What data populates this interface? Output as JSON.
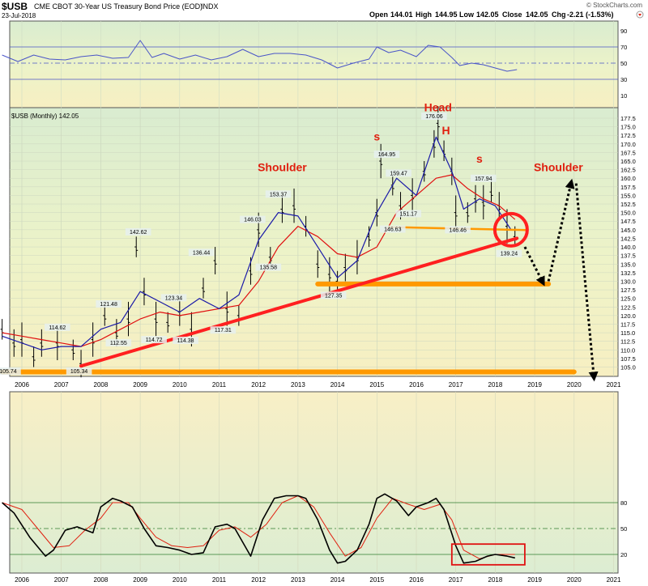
{
  "header": {
    "symbol": "$USB",
    "description": "CME CBOT 30-Year US Treasury Bond Price (EOD)",
    "exchange": "INDX",
    "date": "23-Jul-2018",
    "credit": "© StockCharts.com",
    "open_label": "Open",
    "open": "144.01",
    "high_label": "High",
    "high": "144.95",
    "low_label": "Low",
    "low": "142.05",
    "close_label": "Close",
    "close": "142.05",
    "chg_label": "Chg",
    "chg": "-2.21 (-1.53%)"
  },
  "colors": {
    "price_line": "#000000",
    "ma_fast": "#1a1aa8",
    "ma_slow": "#e01010",
    "trendline": "#ff2020",
    "support": "#ff9900",
    "annotation": "#e02010",
    "rsi_line": "#4a55c8",
    "stoch_k": "#000000",
    "stoch_d": "#e02010",
    "ref_line": "#2f7d2f"
  },
  "chart_data": [
    {
      "type": "line",
      "panel": "rsi",
      "title": "RSI",
      "ylim": [
        0,
        100
      ],
      "y_ticks": [
        "90",
        "70",
        "50",
        "30",
        "10"
      ],
      "reference_levels": [
        70,
        50,
        30
      ],
      "x": [
        2005.5,
        2005.9,
        2006.3,
        2006.7,
        2007.1,
        2007.5,
        2007.9,
        2008.3,
        2008.7,
        2009.0,
        2009.3,
        2009.6,
        2010.0,
        2010.4,
        2010.8,
        2011.2,
        2011.6,
        2012.0,
        2012.4,
        2012.8,
        2013.2,
        2013.6,
        2014.0,
        2014.4,
        2014.8,
        2015.0,
        2015.3,
        2015.6,
        2016.0,
        2016.3,
        2016.6,
        2016.9,
        2017.1,
        2017.4,
        2017.7,
        2018.0,
        2018.3,
        2018.55
      ],
      "values": [
        60,
        52,
        60,
        55,
        54,
        58,
        60,
        56,
        57,
        78,
        57,
        62,
        55,
        60,
        54,
        58,
        67,
        58,
        62,
        62,
        60,
        54,
        44,
        50,
        55,
        70,
        63,
        66,
        58,
        72,
        70,
        57,
        47,
        50,
        48,
        44,
        40,
        42
      ]
    },
    {
      "type": "line",
      "panel": "price",
      "title": "$USB (Monthly) 142.05",
      "ylim": [
        102.5,
        180
      ],
      "y_ticks": [
        "177.5",
        "175.0",
        "172.5",
        "170.0",
        "167.5",
        "165.0",
        "162.5",
        "160.0",
        "157.5",
        "155.0",
        "152.5",
        "150.0",
        "147.5",
        "145.0",
        "142.5",
        "140.0",
        "137.5",
        "135.0",
        "132.5",
        "130.0",
        "127.5",
        "125.0",
        "122.5",
        "120.0",
        "117.5",
        "115.0",
        "112.5",
        "110.0",
        "107.5",
        "105.0"
      ],
      "x_ticks": [
        "2006",
        "2007",
        "2008",
        "2009",
        "2010",
        "2011",
        "2012",
        "2013",
        "2014",
        "2015",
        "2016",
        "2017",
        "2018",
        "2019",
        "2020",
        "2021"
      ],
      "series": [
        {
          "name": "Price",
          "x": [
            2005.5,
            2005.8,
            2006.0,
            2006.3,
            2006.5,
            2006.9,
            2007.3,
            2007.5,
            2007.8,
            2008.1,
            2008.4,
            2008.7,
            2008.9,
            2009.1,
            2009.4,
            2009.7,
            2010.0,
            2010.3,
            2010.6,
            2010.9,
            2011.2,
            2011.5,
            2011.8,
            2012.0,
            2012.3,
            2012.6,
            2012.9,
            2013.2,
            2013.5,
            2013.8,
            2014.0,
            2014.2,
            2014.5,
            2014.8,
            2015.0,
            2015.1,
            2015.4,
            2015.6,
            2015.9,
            2016.2,
            2016.45,
            2016.55,
            2016.7,
            2016.9,
            2017.0,
            2017.3,
            2017.5,
            2017.7,
            2017.9,
            2018.1,
            2018.3,
            2018.5
          ],
          "values": [
            116,
            112,
            113,
            108,
            112,
            112,
            110,
            106,
            113,
            120,
            115,
            119,
            140,
            127,
            119,
            118,
            121,
            116,
            128,
            136,
            122,
            120,
            133,
            145,
            137,
            151,
            152,
            146,
            135,
            132,
            130,
            134,
            137,
            143,
            150,
            165,
            158,
            152,
            155,
            162,
            170,
            176,
            168,
            162,
            150,
            150,
            154,
            153,
            156,
            152,
            146,
            143
          ]
        },
        {
          "name": "MA fast",
          "x": [
            2005.5,
            2006.0,
            2006.5,
            2007.0,
            2007.5,
            2008.0,
            2008.5,
            2009.0,
            2009.5,
            2010.0,
            2010.5,
            2011.0,
            2011.5,
            2012.0,
            2012.5,
            2013.0,
            2013.5,
            2014.0,
            2014.5,
            2015.0,
            2015.5,
            2016.0,
            2016.5,
            2016.9,
            2017.2,
            2017.6,
            2018.0,
            2018.4
          ],
          "values": [
            114,
            112,
            110,
            111,
            111,
            116,
            118,
            127,
            124,
            121,
            125,
            122,
            126,
            142,
            150,
            149,
            140,
            131,
            136,
            150,
            160,
            155,
            172,
            162,
            151,
            154,
            152,
            145
          ]
        },
        {
          "name": "MA slow",
          "x": [
            2005.5,
            2006.0,
            2006.5,
            2007.0,
            2007.5,
            2008.0,
            2008.5,
            2009.0,
            2009.5,
            2010.0,
            2010.5,
            2011.0,
            2011.5,
            2012.0,
            2012.5,
            2013.0,
            2013.5,
            2014.0,
            2014.5,
            2015.0,
            2015.5,
            2016.0,
            2016.5,
            2016.9,
            2017.3,
            2017.7,
            2018.1,
            2018.5
          ],
          "values": [
            115,
            114,
            113,
            112,
            111,
            113,
            116,
            119,
            121,
            120,
            121,
            122,
            123,
            130,
            140,
            146,
            143,
            138,
            137,
            140,
            150,
            155,
            160,
            161,
            157,
            154,
            152,
            148
          ]
        }
      ],
      "data_labels": [
        {
          "text": "105.74",
          "x": 2005.65,
          "y": 103.2
        },
        {
          "text": "114.62",
          "x": 2006.9,
          "y": 116.0
        },
        {
          "text": "105.34",
          "x": 2007.45,
          "y": 103.2
        },
        {
          "text": "112.55",
          "x": 2008.45,
          "y": 111.5
        },
        {
          "text": "121.48",
          "x": 2008.2,
          "y": 122.8
        },
        {
          "text": "142.62",
          "x": 2008.95,
          "y": 143.8
        },
        {
          "text": "114.72",
          "x": 2009.35,
          "y": 112.4
        },
        {
          "text": "123.34",
          "x": 2009.85,
          "y": 124.6
        },
        {
          "text": "114.38",
          "x": 2010.15,
          "y": 112.2
        },
        {
          "text": "136.44",
          "x": 2010.55,
          "y": 137.8
        },
        {
          "text": "117.31",
          "x": 2011.1,
          "y": 115.2
        },
        {
          "text": "146.03",
          "x": 2011.85,
          "y": 147.4
        },
        {
          "text": "135.58",
          "x": 2012.25,
          "y": 133.5
        },
        {
          "text": "153.37",
          "x": 2012.5,
          "y": 154.8
        },
        {
          "text": "127.35",
          "x": 2013.9,
          "y": 125.3
        },
        {
          "text": "164.95",
          "x": 2015.25,
          "y": 166.4
        },
        {
          "text": "159.47",
          "x": 2015.55,
          "y": 160.9
        },
        {
          "text": "151.17",
          "x": 2015.8,
          "y": 149.1
        },
        {
          "text": "146.63",
          "x": 2015.4,
          "y": 144.6
        },
        {
          "text": "176.06",
          "x": 2016.45,
          "y": 177.5
        },
        {
          "text": "146.46",
          "x": 2017.05,
          "y": 144.4
        },
        {
          "text": "157.94",
          "x": 2017.7,
          "y": 159.4
        },
        {
          "text": "139.24",
          "x": 2018.35,
          "y": 137.5
        }
      ],
      "annotations": [
        {
          "text": "Shoulder",
          "x": 2012.6,
          "y": 162.0,
          "size": 14
        },
        {
          "text": "Head",
          "x": 2016.55,
          "y": 179.5,
          "size": 14
        },
        {
          "text": "H",
          "x": 2016.75,
          "y": 172.8,
          "size": 14
        },
        {
          "text": "s",
          "x": 2015.0,
          "y": 171.0,
          "size": 14
        },
        {
          "text": "s",
          "x": 2017.6,
          "y": 164.5,
          "size": 14
        },
        {
          "text": "Shoulder",
          "x": 2019.6,
          "y": 162.0,
          "size": 14
        }
      ],
      "trendline": {
        "x": [
          2007.5,
          2018.55
        ],
        "y": [
          105.3,
          142.5
        ]
      },
      "support_lines": [
        {
          "x": [
            2005.5,
            2020.0
          ],
          "y": [
            103.6,
            103.6
          ]
        },
        {
          "x": [
            2013.5,
            2019.35
          ],
          "y": [
            129.2,
            129.2
          ]
        },
        {
          "x": [
            2015.3,
            2018.8
          ],
          "y": [
            145.8,
            144.9
          ]
        }
      ],
      "projection": [
        {
          "x": [
            2018.75,
            2019.2
          ],
          "y": [
            140.0,
            129.8
          ],
          "style": "dotted"
        },
        {
          "x": [
            2019.35,
            2019.92
          ],
          "y": [
            130.0,
            158.5
          ],
          "style": "dotted"
        },
        {
          "x": [
            2020.05,
            2020.5
          ],
          "y": [
            158.5,
            102.2
          ],
          "style": "dotted"
        }
      ],
      "highlight_circle": {
        "x": 2018.4,
        "y": 145.0
      }
    },
    {
      "type": "line",
      "panel": "stochastic",
      "ylim": [
        0,
        100
      ],
      "y_ticks": [
        "80",
        "50",
        "20"
      ],
      "reference_levels": [
        80,
        50,
        20
      ],
      "series": [
        {
          "name": "%K",
          "x": [
            2005.5,
            2005.8,
            2006.2,
            2006.6,
            2006.8,
            2007.1,
            2007.4,
            2007.8,
            2008.0,
            2008.3,
            2008.5,
            2008.8,
            2009.1,
            2009.4,
            2009.7,
            2010.0,
            2010.3,
            2010.6,
            2010.9,
            2011.2,
            2011.4,
            2011.8,
            2012.1,
            2012.4,
            2012.7,
            2013.0,
            2013.2,
            2013.5,
            2013.8,
            2014.0,
            2014.2,
            2014.5,
            2014.8,
            2015.0,
            2015.2,
            2015.5,
            2015.8,
            2016.0,
            2016.3,
            2016.5,
            2016.7,
            2017.0,
            2017.2,
            2017.5,
            2017.8,
            2018.0,
            2018.3,
            2018.5
          ],
          "values": [
            80,
            68,
            40,
            18,
            25,
            48,
            52,
            45,
            75,
            85,
            82,
            75,
            50,
            30,
            28,
            25,
            20,
            22,
            52,
            55,
            50,
            18,
            60,
            85,
            88,
            88,
            85,
            60,
            25,
            10,
            12,
            25,
            55,
            85,
            90,
            82,
            65,
            75,
            80,
            85,
            72,
            30,
            10,
            12,
            18,
            20,
            18,
            16
          ]
        },
        {
          "name": "%D",
          "x": [
            2005.5,
            2006.0,
            2006.4,
            2006.8,
            2007.2,
            2007.6,
            2008.0,
            2008.3,
            2008.7,
            2009.0,
            2009.4,
            2009.8,
            2010.2,
            2010.6,
            2011.0,
            2011.4,
            2011.8,
            2012.2,
            2012.6,
            2013.0,
            2013.4,
            2013.8,
            2014.2,
            2014.6,
            2015.0,
            2015.4,
            2015.8,
            2016.2,
            2016.6,
            2016.9,
            2017.2,
            2017.6,
            2018.0,
            2018.5
          ],
          "values": [
            80,
            72,
            50,
            28,
            30,
            48,
            62,
            80,
            80,
            62,
            40,
            30,
            28,
            30,
            48,
            52,
            40,
            55,
            80,
            88,
            75,
            45,
            18,
            28,
            62,
            85,
            78,
            72,
            78,
            60,
            25,
            15,
            20,
            20
          ]
        }
      ],
      "highlight_box": {
        "x": [
          2016.9,
          2018.75
        ],
        "y": [
          8,
          32
        ]
      }
    }
  ]
}
